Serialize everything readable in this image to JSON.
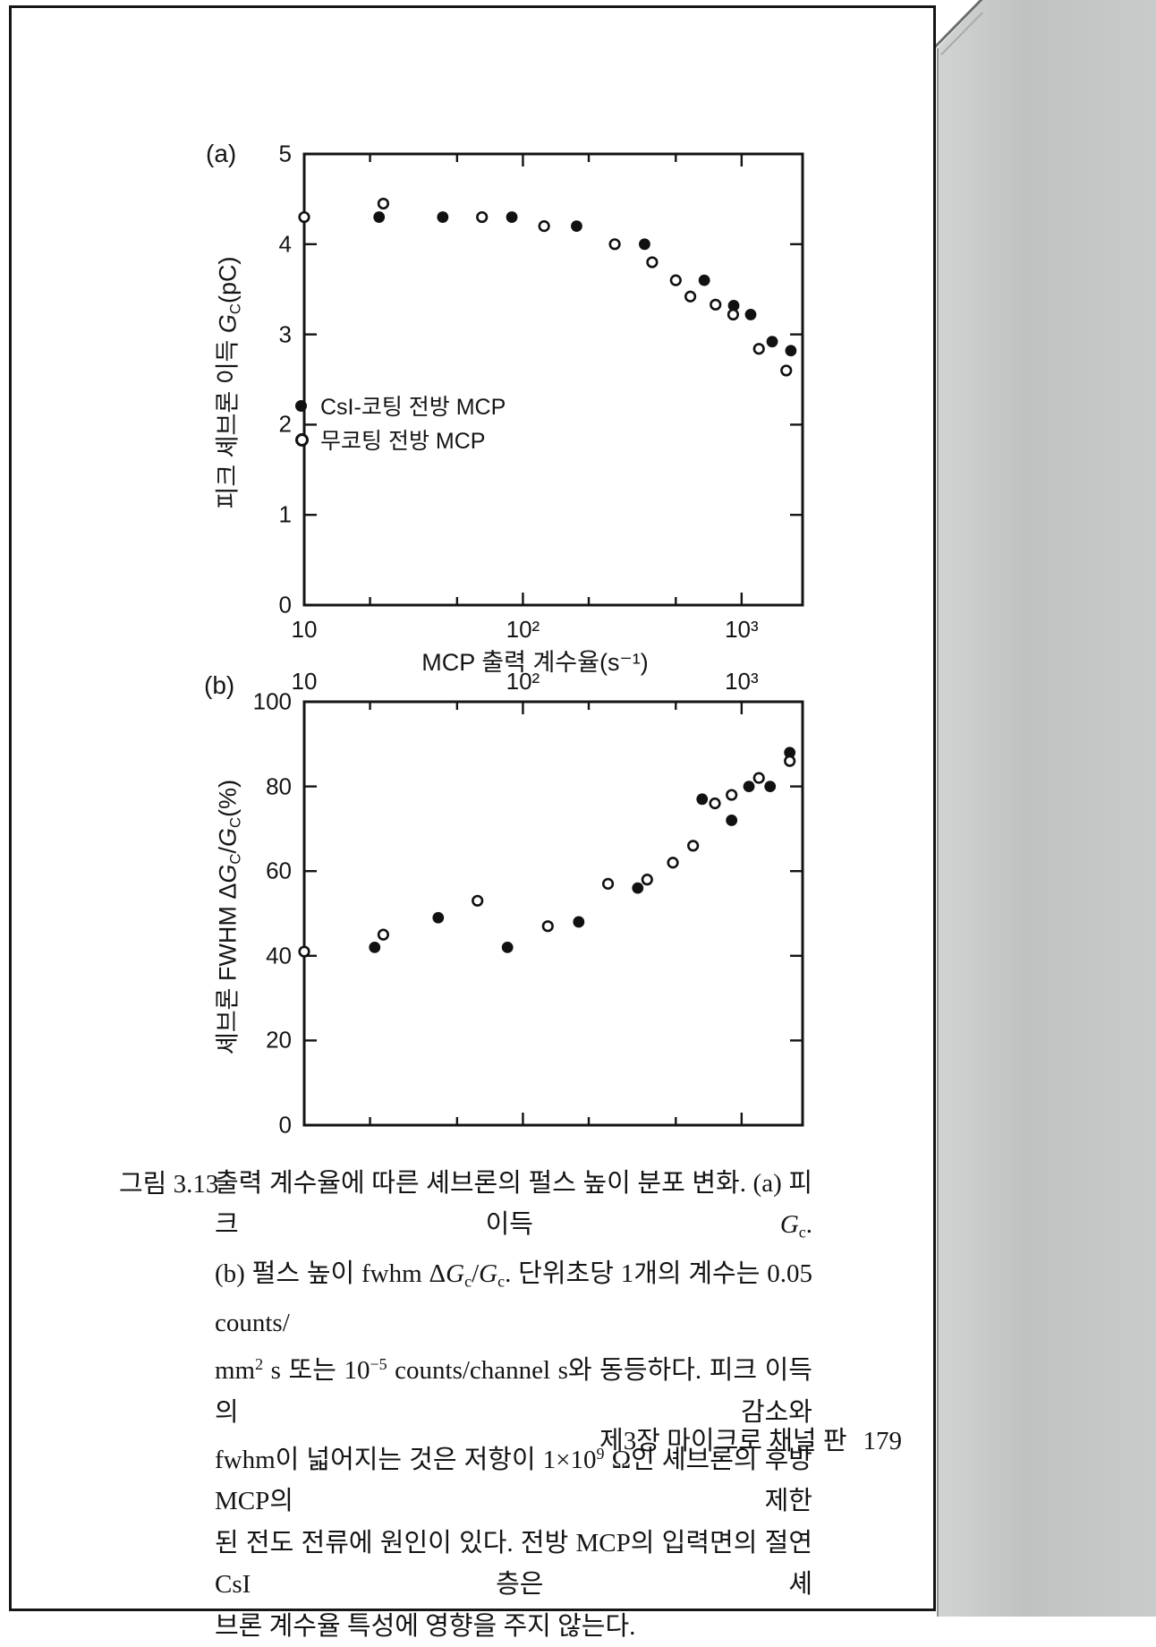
{
  "page": {
    "panel_a": "(a)",
    "panel_b": "(b)",
    "caption": {
      "label": "그림 3.13",
      "lines": [
        "출력 계수율에 따른 셰브론의 펄스 높이 분포 변화. (a) 피크 이득 *G*_{c}.",
        "(b) 펄스 높이 fwhm Δ*G*_{c}/*G*_{c}. 단위초당 1개의 계수는 0.05 counts/",
        "mm^{2} s 또는 10^{−5} counts/channel s와 동등하다. 피크 이득의 감소와",
        "fwhm이 넓어지는 것은 저항이 1×10^{9} Ω인 셰브론의 후방 MCP의 제한",
        "된 전도 전류에 원인이 있다. 전방 MCP의 입력면의 절연 CsI 층은 셰",
        "브론 계수율 특성에 영향을 주지 않는다."
      ]
    },
    "footer": {
      "chapter": "제3장 마이크로 채널 판",
      "page_number": "179"
    }
  },
  "chart_data": [
    {
      "id": "a",
      "type": "scatter",
      "panel_label": "(a)",
      "xscale": "log",
      "xlim": [
        10,
        1900
      ],
      "ylim": [
        0,
        5
      ],
      "xlabel": "MCP 출력 계수율(s⁻¹)",
      "ylabel": "피크 셰브론 이득 *G*_{C}(pC)",
      "x_major_ticks": [
        10,
        100,
        1000
      ],
      "x_major_labels": [
        "10",
        "10²",
        "10³"
      ],
      "x_minor_ticks": [
        20,
        50,
        200,
        500
      ],
      "x_label_position": "bottom",
      "y_ticks": [
        0,
        1,
        2,
        3,
        4,
        5
      ],
      "grid": false,
      "legend_position": "inside-left-middle",
      "series": [
        {
          "name": "CsI-코팅 전방 MCP",
          "marker": "filled",
          "points": [
            [
              22,
              4.3
            ],
            [
              43,
              4.3
            ],
            [
              89,
              4.3
            ],
            [
              176,
              4.2
            ],
            [
              360,
              4.0
            ],
            [
              675,
              3.6
            ],
            [
              920,
              3.32
            ],
            [
              1100,
              3.22
            ],
            [
              1380,
              2.92
            ],
            [
              1680,
              2.82
            ]
          ]
        },
        {
          "name": "무코팅 전방 MCP",
          "marker": "open",
          "points": [
            [
              10,
              4.3
            ],
            [
              23,
              4.45
            ],
            [
              65,
              4.3
            ],
            [
              125,
              4.2
            ],
            [
              263,
              4.0
            ],
            [
              390,
              3.8
            ],
            [
              500,
              3.6
            ],
            [
              583,
              3.42
            ],
            [
              760,
              3.33
            ],
            [
              915,
              3.22
            ],
            [
              1200,
              2.84
            ],
            [
              1600,
              2.6
            ]
          ]
        }
      ]
    },
    {
      "id": "b",
      "type": "scatter",
      "panel_label": "(b)",
      "xscale": "log",
      "xlim": [
        10,
        1900
      ],
      "ylim": [
        0,
        100
      ],
      "xlabel": "",
      "ylabel": "셰브론 FWHM Δ*G*_{C}/*G*_{C}(%)",
      "x_major_ticks": [
        10,
        100,
        1000
      ],
      "x_major_labels": [
        "10",
        "10²",
        "10³"
      ],
      "x_minor_ticks": [
        20,
        50,
        200,
        500
      ],
      "x_label_position": "top",
      "y_ticks": [
        0,
        20,
        40,
        60,
        80,
        100
      ],
      "grid": false,
      "series": [
        {
          "name": "CsI-코팅 전방 MCP",
          "marker": "filled",
          "points": [
            [
              21,
              42
            ],
            [
              41,
              49
            ],
            [
              85,
              42
            ],
            [
              180,
              48
            ],
            [
              335,
              56
            ],
            [
              660,
              77
            ],
            [
              900,
              72
            ],
            [
              1080,
              80
            ],
            [
              1350,
              80
            ],
            [
              1660,
              88
            ]
          ]
        },
        {
          "name": "무코팅 전방 MCP",
          "marker": "open",
          "points": [
            [
              10,
              41
            ],
            [
              23,
              45
            ],
            [
              62,
              53
            ],
            [
              130,
              47
            ],
            [
              245,
              57
            ],
            [
              370,
              58
            ],
            [
              485,
              62
            ],
            [
              600,
              66
            ],
            [
              755,
              76
            ],
            [
              900,
              78
            ],
            [
              1200,
              82
            ],
            [
              1660,
              86
            ]
          ]
        }
      ]
    }
  ]
}
